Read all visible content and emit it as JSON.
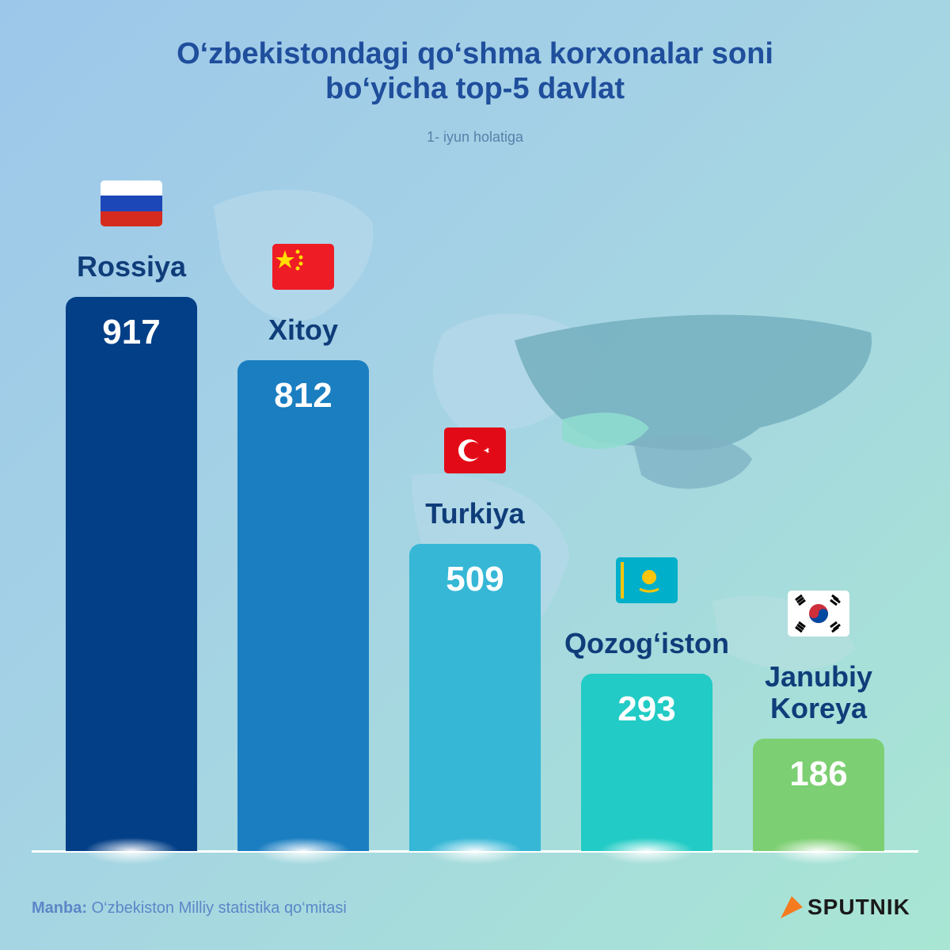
{
  "chart_data": {
    "type": "bar",
    "title": "O‘zbekistondagi qo‘shma korxonalar soni bo‘yicha top-5 davlat",
    "subtitle": "1- iyun holatiga",
    "categories": [
      "Rossiya",
      "Xitoy",
      "Turkiya",
      "Qozog‘iston",
      "Janubiy Koreya"
    ],
    "values": [
      917,
      812,
      509,
      293,
      186
    ],
    "colors": [
      "#033f87",
      "#1a7ec1",
      "#36b7d6",
      "#22cbc5",
      "#7ccf72"
    ],
    "source_label": "Manba:",
    "source": "O‘zbekiston Milliy statistika qo‘mitasi"
  },
  "brand": "SPUTNIK"
}
